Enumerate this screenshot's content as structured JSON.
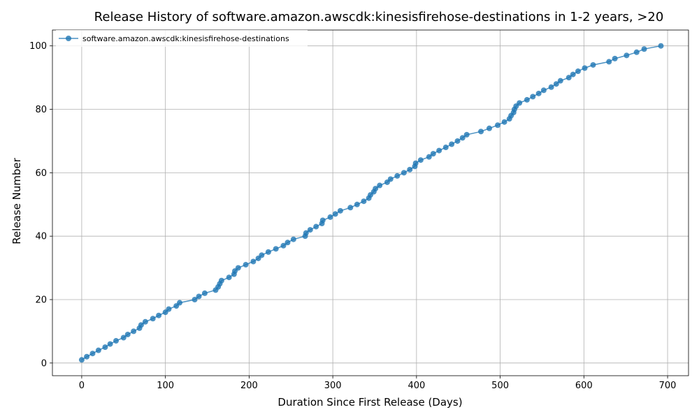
{
  "chart_data": {
    "type": "line",
    "title": "Release History of software.amazon.awscdk:kinesisfirehose-destinations in 1-2 years, >20",
    "xlabel": "Duration Since First Release (Days)",
    "ylabel": "Release Number",
    "xlim": [
      -35,
      725
    ],
    "ylim": [
      -4,
      105
    ],
    "xticks": [
      0,
      100,
      200,
      300,
      400,
      500,
      600,
      700
    ],
    "yticks": [
      0,
      20,
      40,
      60,
      80,
      100
    ],
    "grid": true,
    "legend_position": "top-left",
    "series": [
      {
        "name": "software.amazon.awscdk:kinesisfirehose-destinations",
        "color": "#1f77b4",
        "marker": "circle",
        "x": [
          0,
          6,
          13,
          20,
          28,
          34,
          41,
          50,
          55,
          62,
          69,
          71,
          76,
          85,
          92,
          100,
          104,
          113,
          117,
          135,
          140,
          147,
          160,
          163,
          165,
          167,
          176,
          182,
          183,
          187,
          196,
          205,
          211,
          215,
          223,
          232,
          241,
          246,
          253,
          267,
          268,
          273,
          280,
          287,
          288,
          297,
          303,
          309,
          321,
          329,
          337,
          343,
          345,
          349,
          351,
          356,
          365,
          369,
          377,
          385,
          392,
          398,
          399,
          405,
          415,
          420,
          427,
          435,
          442,
          449,
          455,
          460,
          477,
          487,
          497,
          505,
          511,
          513,
          516,
          517,
          519,
          523,
          532,
          539,
          546,
          552,
          561,
          567,
          572,
          582,
          587,
          593,
          601,
          611,
          630,
          637,
          651,
          663,
          672,
          692
        ],
        "y": [
          1,
          2,
          3,
          4,
          5,
          6,
          7,
          8,
          9,
          10,
          11,
          12,
          13,
          14,
          15,
          16,
          17,
          18,
          19,
          20,
          21,
          22,
          23,
          24,
          25,
          26,
          27,
          28,
          29,
          30,
          31,
          32,
          33,
          34,
          35,
          36,
          37,
          38,
          39,
          40,
          41,
          42,
          43,
          44,
          45,
          46,
          47,
          48,
          49,
          50,
          51,
          52,
          53,
          54,
          55,
          56,
          57,
          58,
          59,
          60,
          61,
          62,
          63,
          64,
          65,
          66,
          67,
          68,
          69,
          70,
          71,
          72,
          73,
          74,
          75,
          76,
          77,
          78,
          79,
          80,
          81,
          82,
          83,
          84,
          85,
          86,
          87,
          88,
          89,
          90,
          91,
          92,
          93,
          94,
          95,
          96,
          97,
          98,
          99,
          100
        ]
      }
    ]
  }
}
